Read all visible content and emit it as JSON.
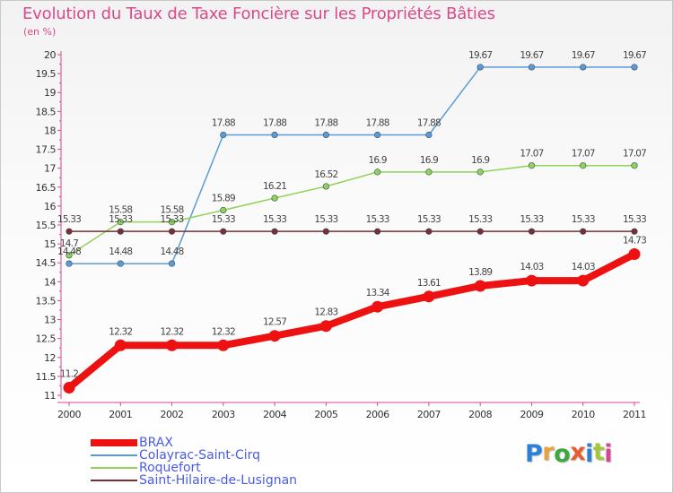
{
  "title": "Evolution du Taux de Taxe Foncière sur les Propriétés Bâties",
  "unit_label": "(en %)",
  "logo": {
    "text": "Proxiti",
    "colors": [
      "#2e7fd6",
      "#e6a23c",
      "#3ea83e",
      "#e95b2e",
      "#2e7fd6",
      "#a3c93a",
      "#d64596"
    ]
  },
  "chart_data": {
    "type": "line",
    "title": "Evolution du Taux de Taxe Foncière sur les Propriétés Bâties",
    "ylabel": "(en %)",
    "xlabel": "",
    "ylim": [
      11,
      20
    ],
    "yticks": [
      "11",
      "11.5",
      "12",
      "12.5",
      "13",
      "13.5",
      "14",
      "14.5",
      "15",
      "15.5",
      "16",
      "16.5",
      "17",
      "17.5",
      "18",
      "18.5",
      "19",
      "19.5",
      "20"
    ],
    "x": [
      "2000",
      "2001",
      "2002",
      "2003",
      "2004",
      "2005",
      "2006",
      "2007",
      "2008",
      "2009",
      "2010",
      "2011"
    ],
    "grid": false,
    "legend_position": "bottom-left",
    "series": [
      {
        "name": "BRAX",
        "color": "#ee1111",
        "values": [
          11.2,
          12.32,
          12.32,
          12.32,
          12.57,
          12.83,
          13.34,
          13.61,
          13.89,
          14.03,
          14.03,
          14.73
        ],
        "labels": [
          "11.2",
          "12.32",
          "12.32",
          "12.32",
          "12.57",
          "12.83",
          "13.34",
          "13.61",
          "13.89",
          "14.03",
          "14.03",
          "14.73"
        ]
      },
      {
        "name": "Colayrac-Saint-Cirq",
        "color": "#5b9bd5",
        "values": [
          14.48,
          14.48,
          14.48,
          17.88,
          17.88,
          17.88,
          17.88,
          17.88,
          19.67,
          19.67,
          19.67,
          19.67
        ],
        "labels": [
          "14.48",
          "14.48",
          "14.48",
          "17.88",
          "17.88",
          "17.88",
          "17.88",
          "17.88",
          "19.67",
          "19.67",
          "19.67",
          "19.67"
        ]
      },
      {
        "name": "Roquefort",
        "color": "#8fd35a",
        "values": [
          14.7,
          15.58,
          15.58,
          15.89,
          16.21,
          16.52,
          16.9,
          16.9,
          16.9,
          17.07,
          17.07,
          17.07
        ],
        "labels": [
          "14.7",
          "15.58",
          "15.58",
          "15.89",
          "16.21",
          "16.52",
          "16.9",
          "16.9",
          "16.9",
          "17.07",
          "17.07",
          "17.07"
        ]
      },
      {
        "name": "Saint-Hilaire-de-Lusignan",
        "color": "#7a2e38",
        "values": [
          15.33,
          15.33,
          15.33,
          15.33,
          15.33,
          15.33,
          15.33,
          15.33,
          15.33,
          15.33,
          15.33,
          15.33
        ],
        "labels": [
          "15.33",
          "15.33",
          "15.33",
          "15.33",
          "15.33",
          "15.33",
          "15.33",
          "15.33",
          "15.33",
          "15.33",
          "15.33",
          "15.33"
        ]
      }
    ]
  }
}
